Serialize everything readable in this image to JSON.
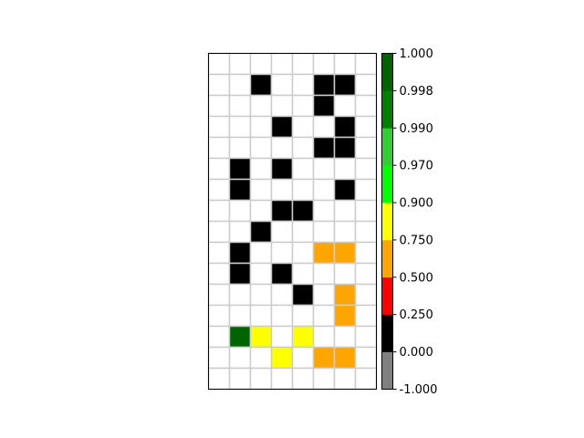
{
  "chart_data": {
    "type": "heatmap",
    "title": "",
    "xlabel": "",
    "ylabel": "",
    "n_cols": 8,
    "n_rows": 16,
    "grid": true,
    "grid_color": "#cccccc",
    "empty_color": "#ffffff",
    "cells": [
      {
        "row": 1,
        "col": 2,
        "color": "#000000"
      },
      {
        "row": 1,
        "col": 5,
        "color": "#000000"
      },
      {
        "row": 1,
        "col": 6,
        "color": "#000000"
      },
      {
        "row": 2,
        "col": 5,
        "color": "#000000"
      },
      {
        "row": 3,
        "col": 3,
        "color": "#000000"
      },
      {
        "row": 3,
        "col": 6,
        "color": "#000000"
      },
      {
        "row": 4,
        "col": 5,
        "color": "#000000"
      },
      {
        "row": 4,
        "col": 6,
        "color": "#000000"
      },
      {
        "row": 5,
        "col": 1,
        "color": "#000000"
      },
      {
        "row": 5,
        "col": 3,
        "color": "#000000"
      },
      {
        "row": 6,
        "col": 1,
        "color": "#000000"
      },
      {
        "row": 6,
        "col": 6,
        "color": "#000000"
      },
      {
        "row": 7,
        "col": 3,
        "color": "#000000"
      },
      {
        "row": 7,
        "col": 4,
        "color": "#000000"
      },
      {
        "row": 8,
        "col": 2,
        "color": "#000000"
      },
      {
        "row": 9,
        "col": 1,
        "color": "#000000"
      },
      {
        "row": 9,
        "col": 5,
        "color": "#ffa500"
      },
      {
        "row": 9,
        "col": 6,
        "color": "#ffa500"
      },
      {
        "row": 10,
        "col": 1,
        "color": "#000000"
      },
      {
        "row": 10,
        "col": 3,
        "color": "#000000"
      },
      {
        "row": 11,
        "col": 4,
        "color": "#000000"
      },
      {
        "row": 11,
        "col": 6,
        "color": "#ffa500"
      },
      {
        "row": 12,
        "col": 6,
        "color": "#ffa500"
      },
      {
        "row": 13,
        "col": 1,
        "color": "#006400"
      },
      {
        "row": 13,
        "col": 2,
        "color": "#ffff00"
      },
      {
        "row": 13,
        "col": 4,
        "color": "#ffff00"
      },
      {
        "row": 14,
        "col": 3,
        "color": "#ffff00"
      },
      {
        "row": 14,
        "col": 5,
        "color": "#ffa500"
      },
      {
        "row": 14,
        "col": 6,
        "color": "#ffa500"
      }
    ],
    "colorbar": {
      "ticks": [
        "-1.000",
        "0.000",
        "0.250",
        "0.500",
        "0.750",
        "0.900",
        "0.970",
        "0.990",
        "0.998",
        "1.000"
      ],
      "bands": [
        {
          "from": "-1.000",
          "to": "0.000",
          "color": "#808080"
        },
        {
          "from": "0.000",
          "to": "0.250",
          "color": "#000000"
        },
        {
          "from": "0.250",
          "to": "0.500",
          "color": "#ff0000"
        },
        {
          "from": "0.500",
          "to": "0.750",
          "color": "#ffa500"
        },
        {
          "from": "0.750",
          "to": "0.900",
          "color": "#ffff00"
        },
        {
          "from": "0.900",
          "to": "0.970",
          "color": "#00ff00"
        },
        {
          "from": "0.970",
          "to": "0.990",
          "color": "#32cd32"
        },
        {
          "from": "0.990",
          "to": "0.998",
          "color": "#008000"
        },
        {
          "from": "0.998",
          "to": "1.000",
          "color": "#006400"
        }
      ]
    }
  }
}
